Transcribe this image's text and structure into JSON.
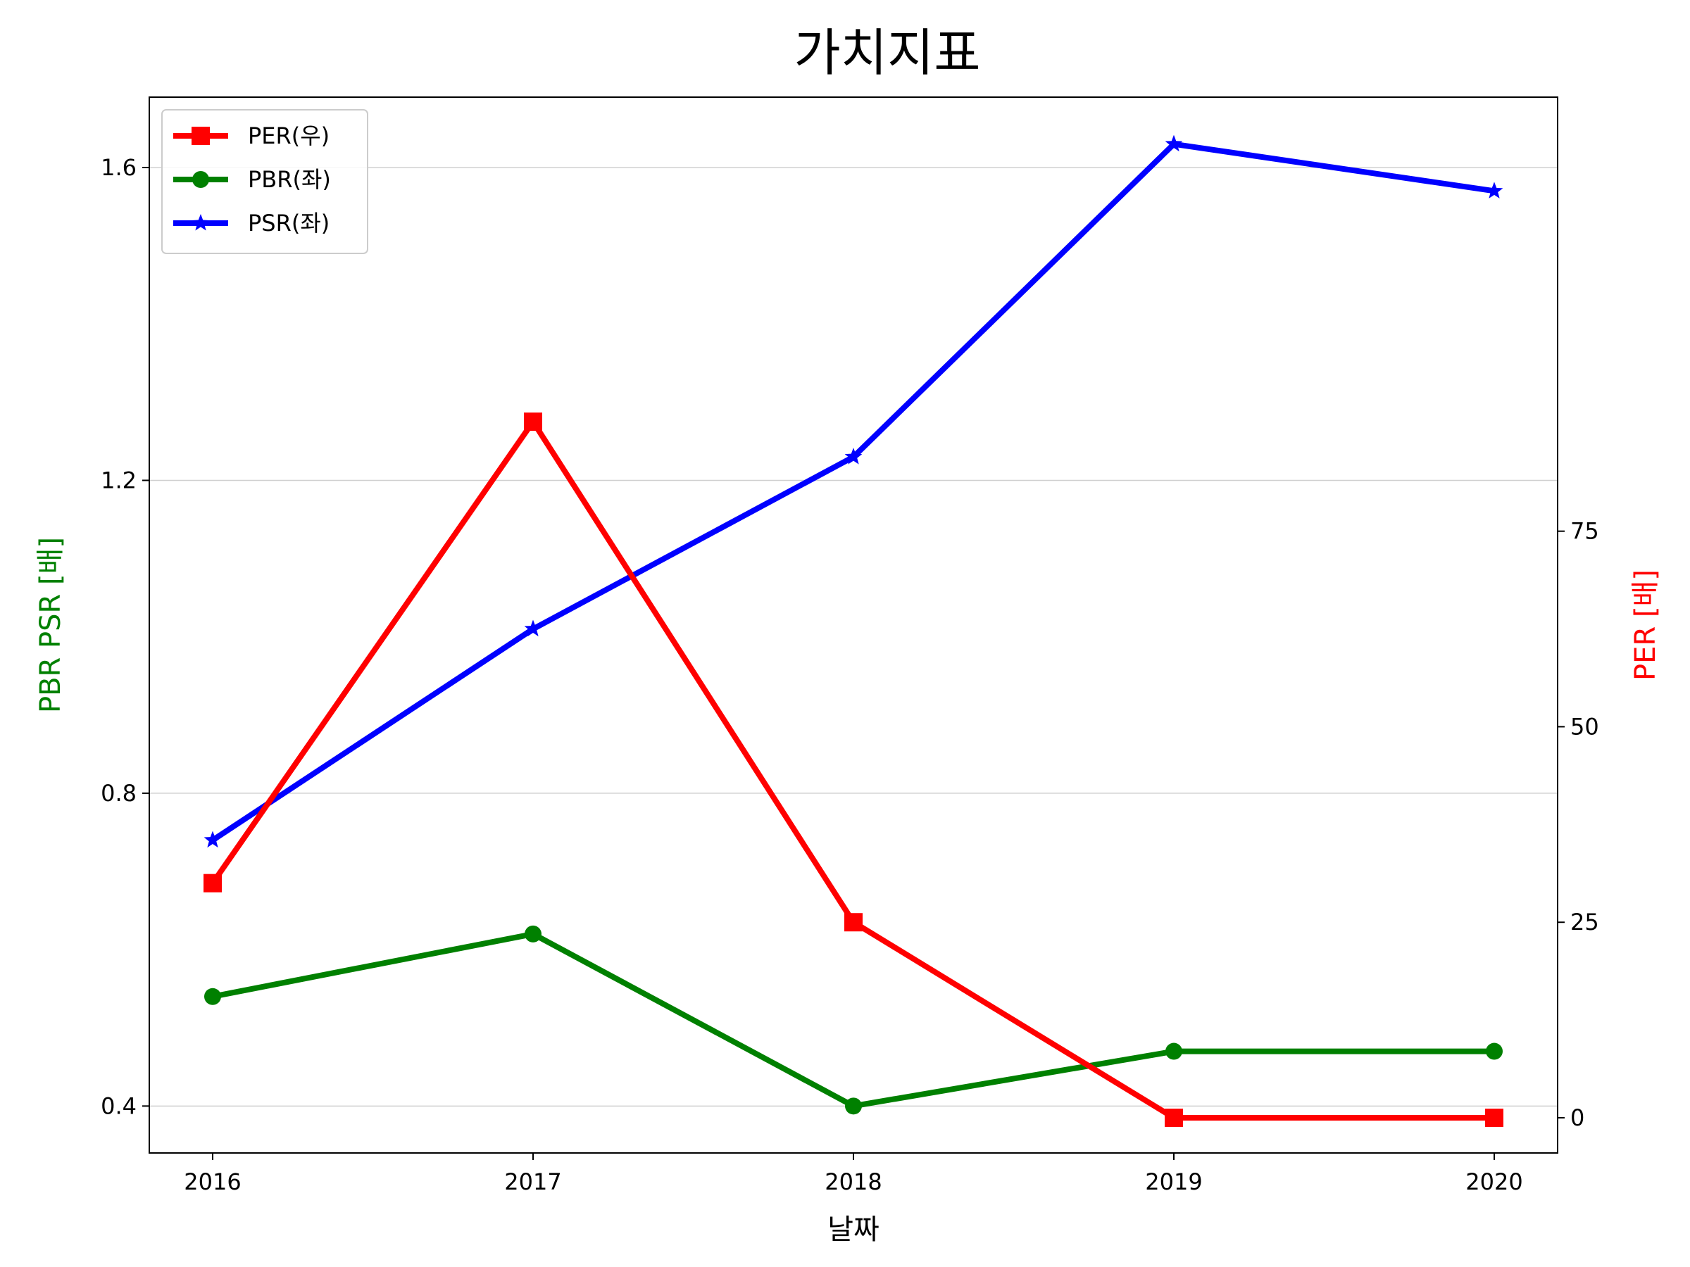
{
  "chart_data": {
    "type": "line",
    "title": "가치지표",
    "xlabel": "날짜",
    "ylabel_left": "PBR PSR [배]",
    "ylabel_right": "PER [배]",
    "categories": [
      "2016",
      "2017",
      "2018",
      "2019",
      "2020"
    ],
    "y_left_ticks": [
      "0.4",
      "0.8",
      "1.2",
      "1.6"
    ],
    "y_right_ticks": [
      "0",
      "25",
      "50",
      "75"
    ],
    "y_left_lim": [
      0.34,
      1.69
    ],
    "y_right_lim": [
      -4.5,
      130.5
    ],
    "grid": "horizontal (left axis)",
    "legend_position": "upper-left",
    "series": [
      {
        "name": "PER(우)",
        "axis": "right",
        "marker": "square",
        "color": "#ff0000",
        "values": [
          30,
          89,
          25,
          0,
          0
        ]
      },
      {
        "name": "PBR(좌)",
        "axis": "left",
        "marker": "circle",
        "color": "#008000",
        "values": [
          0.54,
          0.62,
          0.4,
          0.47,
          0.47
        ]
      },
      {
        "name": "PSR(좌)",
        "axis": "left",
        "marker": "star",
        "color": "#0000ff",
        "values": [
          0.74,
          1.01,
          1.23,
          1.63,
          1.57
        ]
      }
    ],
    "label_colors": {
      "left": "#008000",
      "right": "#ff0000"
    }
  }
}
